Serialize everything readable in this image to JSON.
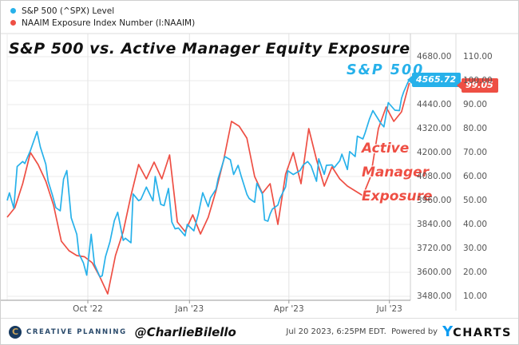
{
  "title": "S&P 500 vs. Active Manager Equity Exposure",
  "legend": {
    "items": [
      {
        "label": "S&P 500 (^SPX) Level",
        "color": "#27b1ea"
      },
      {
        "label": "NAAIM Exposure Index Number (I:NAAIM)",
        "color": "#ee4f44"
      }
    ]
  },
  "annotations": {
    "spx_label": "S&P 500",
    "naaim_lines": [
      "Active",
      "Manager",
      "Exposure"
    ]
  },
  "badges": {
    "spx": {
      "text": "4565.72",
      "color": "#27b1ea"
    },
    "naaim": {
      "text": "99.05",
      "color": "#ee4f44"
    }
  },
  "colors": {
    "spx_line": "#27b1ea",
    "naaim_line": "#ee4f44",
    "grid": "#ebebeb",
    "axis_line": "#999999",
    "tick_text": "#555555"
  },
  "footer": {
    "brand_initial": "C",
    "brand": "CREATIVE PLANNING",
    "handle": "@CharlieBilello",
    "timestamp": "Jul 20 2023, 6:25PM EDT.",
    "powered_by": "Powered by",
    "logo_y": "Y",
    "logo_charts": "CHARTS"
  },
  "chart_data": {
    "type": "line",
    "x_range": [
      "2022-07-20",
      "2023-07-20"
    ],
    "x_ticks": [
      {
        "label": "Oct '22",
        "date": "2022-10-01"
      },
      {
        "label": "Jan '23",
        "date": "2023-01-01"
      },
      {
        "label": "Apr '23",
        "date": "2023-04-01"
      },
      {
        "label": "Jul '23",
        "date": "2023-07-01"
      }
    ],
    "axes": [
      {
        "id": "spx",
        "side": "right-inner",
        "range": [
          3480,
          4680
        ],
        "ticks": [
          4680,
          4440,
          4320,
          4200,
          4080,
          3960,
          3840,
          3720,
          3600,
          3480
        ]
      },
      {
        "id": "naaim",
        "side": "right-outer",
        "range": [
          10,
          110
        ],
        "ticks": [
          110,
          100,
          90,
          80,
          70,
          60,
          50,
          40,
          30,
          20,
          10
        ]
      }
    ],
    "grid": true,
    "legend_position": "top-left",
    "series": [
      {
        "name": "NAAIM Exposure Index Number (I:NAAIM)",
        "axis": "naaim",
        "color": "#ee4f44",
        "last_value": 99.05,
        "points": [
          [
            "2022-07-20",
            43
          ],
          [
            "2022-07-27",
            47
          ],
          [
            "2022-08-03",
            57
          ],
          [
            "2022-08-10",
            70
          ],
          [
            "2022-08-17",
            65
          ],
          [
            "2022-08-24",
            58
          ],
          [
            "2022-08-31",
            48
          ],
          [
            "2022-09-07",
            33
          ],
          [
            "2022-09-14",
            29
          ],
          [
            "2022-09-21",
            27
          ],
          [
            "2022-09-28",
            26.5
          ],
          [
            "2022-10-05",
            24
          ],
          [
            "2022-10-12",
            18
          ],
          [
            "2022-10-19",
            11
          ],
          [
            "2022-10-26",
            27
          ],
          [
            "2022-11-02",
            37
          ],
          [
            "2022-11-09",
            52
          ],
          [
            "2022-11-16",
            65
          ],
          [
            "2022-11-23",
            59
          ],
          [
            "2022-11-30",
            66
          ],
          [
            "2022-12-07",
            59
          ],
          [
            "2022-12-14",
            69
          ],
          [
            "2022-12-21",
            41
          ],
          [
            "2022-12-28",
            37
          ],
          [
            "2023-01-04",
            44
          ],
          [
            "2023-01-11",
            36
          ],
          [
            "2023-01-18",
            43
          ],
          [
            "2023-01-25",
            54
          ],
          [
            "2023-02-01",
            67
          ],
          [
            "2023-02-08",
            83
          ],
          [
            "2023-02-15",
            81
          ],
          [
            "2023-02-22",
            76
          ],
          [
            "2023-03-01",
            60
          ],
          [
            "2023-03-08",
            53
          ],
          [
            "2023-03-15",
            57
          ],
          [
            "2023-03-22",
            40
          ],
          [
            "2023-03-29",
            61
          ],
          [
            "2023-04-05",
            70
          ],
          [
            "2023-04-12",
            57
          ],
          [
            "2023-04-19",
            80
          ],
          [
            "2023-04-26",
            67
          ],
          [
            "2023-05-03",
            56
          ],
          [
            "2023-05-10",
            64
          ],
          [
            "2023-05-17",
            59
          ],
          [
            "2023-05-24",
            56
          ],
          [
            "2023-05-31",
            54
          ],
          [
            "2023-06-07",
            52
          ],
          [
            "2023-06-14",
            60
          ],
          [
            "2023-06-21",
            80
          ],
          [
            "2023-06-28",
            89
          ],
          [
            "2023-07-05",
            83
          ],
          [
            "2023-07-12",
            87
          ],
          [
            "2023-07-19",
            99.05
          ]
        ]
      },
      {
        "name": "S&P 500 (^SPX) Level",
        "axis": "spx",
        "color": "#27b1ea",
        "last_value": 4565.72,
        "points": [
          [
            "2022-07-20",
            3960
          ],
          [
            "2022-07-22",
            3998
          ],
          [
            "2022-07-26",
            3921
          ],
          [
            "2022-07-29",
            4130
          ],
          [
            "2022-08-03",
            4155
          ],
          [
            "2022-08-05",
            4145
          ],
          [
            "2022-08-10",
            4210
          ],
          [
            "2022-08-16",
            4305
          ],
          [
            "2022-08-19",
            4228
          ],
          [
            "2022-08-24",
            4141
          ],
          [
            "2022-08-26",
            4058
          ],
          [
            "2022-08-30",
            3986
          ],
          [
            "2022-09-02",
            3924
          ],
          [
            "2022-09-06",
            3908
          ],
          [
            "2022-09-09",
            4067
          ],
          [
            "2022-09-12",
            4110
          ],
          [
            "2022-09-16",
            3873
          ],
          [
            "2022-09-21",
            3790
          ],
          [
            "2022-09-23",
            3693
          ],
          [
            "2022-09-27",
            3647
          ],
          [
            "2022-09-30",
            3586
          ],
          [
            "2022-10-04",
            3791
          ],
          [
            "2022-10-07",
            3640
          ],
          [
            "2022-10-12",
            3577
          ],
          [
            "2022-10-14",
            3583
          ],
          [
            "2022-10-17",
            3678
          ],
          [
            "2022-10-21",
            3753
          ],
          [
            "2022-10-25",
            3859
          ],
          [
            "2022-10-28",
            3901
          ],
          [
            "2022-11-02",
            3760
          ],
          [
            "2022-11-04",
            3771
          ],
          [
            "2022-11-09",
            3748
          ],
          [
            "2022-11-11",
            3993
          ],
          [
            "2022-11-16",
            3959
          ],
          [
            "2022-11-18",
            3965
          ],
          [
            "2022-11-23",
            4027
          ],
          [
            "2022-11-29",
            3958
          ],
          [
            "2022-12-01",
            4080
          ],
          [
            "2022-12-06",
            3941
          ],
          [
            "2022-12-09",
            3934
          ],
          [
            "2022-12-13",
            4020
          ],
          [
            "2022-12-16",
            3852
          ],
          [
            "2022-12-19",
            3818
          ],
          [
            "2022-12-22",
            3822
          ],
          [
            "2022-12-28",
            3783
          ],
          [
            "2022-12-30",
            3840
          ],
          [
            "2023-01-05",
            3808
          ],
          [
            "2023-01-09",
            3892
          ],
          [
            "2023-01-13",
            3999
          ],
          [
            "2023-01-18",
            3929
          ],
          [
            "2023-01-20",
            3973
          ],
          [
            "2023-01-25",
            4016
          ],
          [
            "2023-01-27",
            4071
          ],
          [
            "2023-02-02",
            4180
          ],
          [
            "2023-02-07",
            4164
          ],
          [
            "2023-02-10",
            4090
          ],
          [
            "2023-02-14",
            4136
          ],
          [
            "2023-02-17",
            4079
          ],
          [
            "2023-02-22",
            3991
          ],
          [
            "2023-02-24",
            3970
          ],
          [
            "2023-03-01",
            3951
          ],
          [
            "2023-03-03",
            4046
          ],
          [
            "2023-03-08",
            3992
          ],
          [
            "2023-03-10",
            3862
          ],
          [
            "2023-03-13",
            3856
          ],
          [
            "2023-03-15",
            3892
          ],
          [
            "2023-03-17",
            3917
          ],
          [
            "2023-03-22",
            3937
          ],
          [
            "2023-03-24",
            3971
          ],
          [
            "2023-03-29",
            4028
          ],
          [
            "2023-03-31",
            4109
          ],
          [
            "2023-04-05",
            4090
          ],
          [
            "2023-04-11",
            4109
          ],
          [
            "2023-04-14",
            4138
          ],
          [
            "2023-04-18",
            4155
          ],
          [
            "2023-04-21",
            4134
          ],
          [
            "2023-04-26",
            4056
          ],
          [
            "2023-04-28",
            4169
          ],
          [
            "2023-05-03",
            4091
          ],
          [
            "2023-05-05",
            4136
          ],
          [
            "2023-05-10",
            4138
          ],
          [
            "2023-05-12",
            4124
          ],
          [
            "2023-05-17",
            4159
          ],
          [
            "2023-05-19",
            4192
          ],
          [
            "2023-05-24",
            4115
          ],
          [
            "2023-05-26",
            4205
          ],
          [
            "2023-05-31",
            4180
          ],
          [
            "2023-06-02",
            4282
          ],
          [
            "2023-06-07",
            4268
          ],
          [
            "2023-06-09",
            4299
          ],
          [
            "2023-06-13",
            4369
          ],
          [
            "2023-06-16",
            4410
          ],
          [
            "2023-06-21",
            4366
          ],
          [
            "2023-06-23",
            4348
          ],
          [
            "2023-06-26",
            4329
          ],
          [
            "2023-06-30",
            4450
          ],
          [
            "2023-07-06",
            4412
          ],
          [
            "2023-07-10",
            4410
          ],
          [
            "2023-07-12",
            4472
          ],
          [
            "2023-07-14",
            4505
          ],
          [
            "2023-07-18",
            4555
          ],
          [
            "2023-07-20",
            4565.72
          ]
        ]
      }
    ]
  }
}
